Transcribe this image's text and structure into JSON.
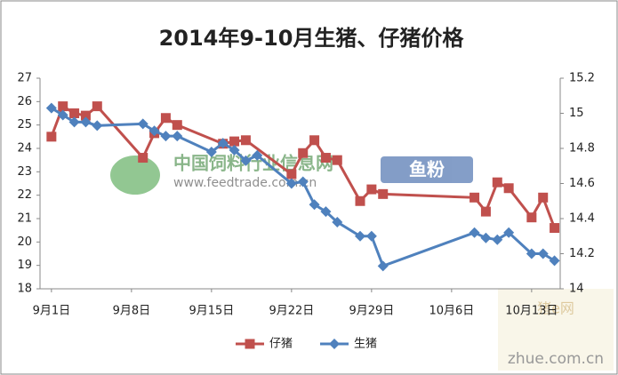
{
  "chart_data": {
    "type": "line",
    "title": "2014年9-10月生猪、仔猪价格",
    "xlim": [
      -1,
      44.5
    ],
    "xticks": [
      {
        "value": 0,
        "label": "9月1日"
      },
      {
        "value": 7,
        "label": "9月8日"
      },
      {
        "value": 14,
        "label": "9月15日"
      },
      {
        "value": 21,
        "label": "9月22日"
      },
      {
        "value": 28,
        "label": "9月29日"
      },
      {
        "value": 35,
        "label": "10月6日"
      },
      {
        "value": 42,
        "label": "10月13日"
      }
    ],
    "ylim": [
      18,
      27
    ],
    "yticks": [
      18,
      19,
      20,
      21,
      22,
      23,
      24,
      25,
      26,
      27
    ],
    "y2lim": [
      14,
      15.2
    ],
    "y2ticks": [
      14,
      14.2,
      14.4,
      14.6,
      14.8,
      15,
      15.2
    ],
    "legend": "bottom",
    "series": [
      {
        "name": "仔猪",
        "color": "#c0504d",
        "marker": "square",
        "x": [
          0,
          1,
          2,
          3,
          4,
          8,
          9,
          10,
          11,
          15,
          16,
          17,
          21,
          22,
          23,
          24,
          25,
          27,
          28,
          29,
          37,
          38,
          39,
          40,
          42,
          43,
          44
        ],
        "values": [
          24.5,
          25.8,
          25.5,
          25.4,
          25.8,
          23.6,
          24.65,
          25.3,
          25.0,
          24.2,
          24.3,
          24.35,
          22.9,
          23.8,
          24.35,
          23.6,
          23.5,
          21.75,
          22.25,
          22.05,
          21.9,
          21.3,
          22.55,
          22.3,
          21.05,
          21.9,
          20.6
        ]
      },
      {
        "name": "生猪",
        "color": "#4f81bd",
        "marker": "diamond",
        "axis": "y2",
        "x": [
          0,
          1,
          2,
          3,
          4,
          8,
          9,
          10,
          11,
          14,
          15,
          16,
          17,
          18,
          21,
          22,
          23,
          24,
          25,
          27,
          28,
          29,
          37,
          38,
          39,
          40,
          42,
          43,
          44
        ],
        "values": [
          15.03,
          14.99,
          14.95,
          14.95,
          14.93,
          14.94,
          14.9,
          14.87,
          14.87,
          14.78,
          14.83,
          14.79,
          14.73,
          14.76,
          14.6,
          14.61,
          14.48,
          14.44,
          14.38,
          14.3,
          14.3,
          14.13,
          14.32,
          14.29,
          14.28,
          14.32,
          14.2,
          14.2,
          14.16
        ]
      }
    ],
    "watermarks": [
      "中国饲料行业信息网",
      "www.feedtrade.com.cn",
      "鱼粉",
      "猪e网",
      "zhue.com.cn"
    ]
  }
}
